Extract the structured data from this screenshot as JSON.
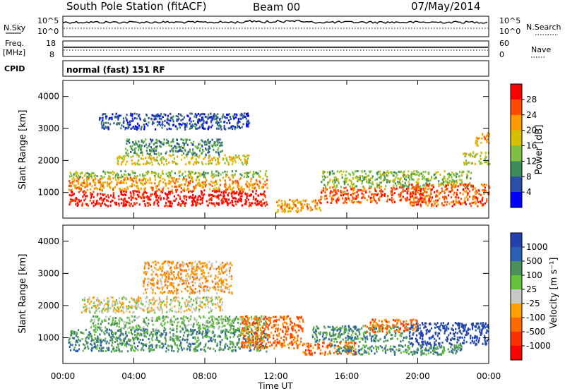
{
  "header": {
    "station": "South Pole Station (fitACF)",
    "beam": "Beam 00",
    "date": "07/May/2014"
  },
  "top_panels": {
    "nsky_label": "N.Sky",
    "nsky_ticks": [
      "10^5",
      "10^0"
    ],
    "nsearch_label": "N.Search",
    "nsearch_ticks": [
      "10^5",
      "10^0"
    ],
    "freq_label": "Freq.",
    "freq_unit": "[MHz]",
    "freq_ticks": [
      "18",
      "8"
    ],
    "nave_label": "Nave",
    "nave_ticks": [
      "60",
      "0"
    ],
    "cpid_label": "CPID",
    "cpid_text": "normal (fast) 151 RF"
  },
  "chart_data": [
    {
      "type": "heatmap",
      "title": "",
      "ylabel": "Slant Range [km]",
      "xlabel": "",
      "x_ticks": [
        "00:00",
        "04:00",
        "08:00",
        "12:00",
        "16:00",
        "20:00",
        "00:00"
      ],
      "xlim": [
        0,
        24
      ],
      "ylim": [
        200,
        4500
      ],
      "y_ticks": [
        1000,
        2000,
        3000,
        4000
      ],
      "colorbar": {
        "label": "Power [dB]",
        "ticks": [
          "28",
          "24",
          "20",
          "16",
          "12",
          "8",
          "4"
        ],
        "colors": [
          "#ff0000",
          "#ff4a00",
          "#ff9b00",
          "#d7be00",
          "#7fbf3f",
          "#3c8c5a",
          "#2b4ea8",
          "#0000ff"
        ]
      },
      "scatter_bands": [
        {
          "t0": 0.3,
          "t1": 11.5,
          "r0": 600,
          "r1": 1100,
          "level": 0
        },
        {
          "t0": 0.3,
          "t1": 11.5,
          "r0": 1100,
          "r1": 1500,
          "level": 2
        },
        {
          "t0": 0.3,
          "t1": 11.5,
          "r0": 1500,
          "r1": 1700,
          "level": 4
        },
        {
          "t0": 3.0,
          "t1": 10.5,
          "r0": 1900,
          "r1": 2200,
          "level": 3
        },
        {
          "t0": 3.5,
          "t1": 9.0,
          "r0": 2200,
          "r1": 2700,
          "level": 5
        },
        {
          "t0": 2.0,
          "t1": 10.5,
          "r0": 3000,
          "r1": 3500,
          "level": 6
        },
        {
          "t0": 12.0,
          "t1": 14.5,
          "r0": 400,
          "r1": 800,
          "level": 2
        },
        {
          "t0": 14.5,
          "t1": 20.5,
          "r0": 700,
          "r1": 1200,
          "level": 1
        },
        {
          "t0": 14.5,
          "t1": 23.0,
          "r0": 1200,
          "r1": 1700,
          "level": 4
        },
        {
          "t0": 19.5,
          "t1": 24.0,
          "r0": 600,
          "r1": 1300,
          "level": 1
        },
        {
          "t0": 22.5,
          "t1": 24.0,
          "r0": 1900,
          "r1": 2300,
          "level": 3
        },
        {
          "t0": 23.2,
          "t1": 24.0,
          "r0": 2500,
          "r1": 2900,
          "level": 2
        }
      ]
    },
    {
      "type": "heatmap",
      "title": "",
      "ylabel": "Slant Range [km]",
      "xlabel": "Time UT",
      "x_ticks": [
        "00:00",
        "04:00",
        "08:00",
        "12:00",
        "16:00",
        "20:00",
        "00:00"
      ],
      "xlim": [
        0,
        24
      ],
      "ylim": [
        200,
        4500
      ],
      "y_ticks": [
        1000,
        2000,
        3000,
        4000
      ],
      "colorbar": {
        "label": "Velocity [m s⁻¹]",
        "ticks": [
          "1000",
          "500",
          "100",
          "25",
          "-25",
          "-100",
          "-500",
          "-1000"
        ],
        "colors": [
          "#2440b0",
          "#2a5fb5",
          "#4b8f5a",
          "#64c23a",
          "#c8c8c8",
          "#ffa000",
          "#ff6a00",
          "#ff3000",
          "#ff0000"
        ]
      },
      "scatter_bands": [
        {
          "t0": 0.3,
          "t1": 11.5,
          "r0": 600,
          "r1": 1300,
          "level": 2
        },
        {
          "t0": 1.5,
          "t1": 11.5,
          "r0": 1300,
          "r1": 1700,
          "level": 3
        },
        {
          "t0": 1.0,
          "t1": 9.0,
          "r0": 1800,
          "r1": 2300,
          "level": 4
        },
        {
          "t0": 4.5,
          "t1": 9.5,
          "r0": 2400,
          "r1": 3400,
          "level": 5
        },
        {
          "t0": 10.0,
          "t1": 13.5,
          "r0": 700,
          "r1": 1700,
          "level": 6
        },
        {
          "t0": 13.5,
          "t1": 16.5,
          "r0": 500,
          "r1": 900,
          "level": 6
        },
        {
          "t0": 14.0,
          "t1": 19.5,
          "r0": 900,
          "r1": 1400,
          "level": 2
        },
        {
          "t0": 17.0,
          "t1": 20.0,
          "r0": 1200,
          "r1": 1600,
          "level": 6
        },
        {
          "t0": 19.5,
          "t1": 24.0,
          "r0": 800,
          "r1": 1500,
          "level": 0
        },
        {
          "t0": 15.0,
          "t1": 22.5,
          "r0": 500,
          "r1": 800,
          "level": 2
        }
      ]
    }
  ]
}
